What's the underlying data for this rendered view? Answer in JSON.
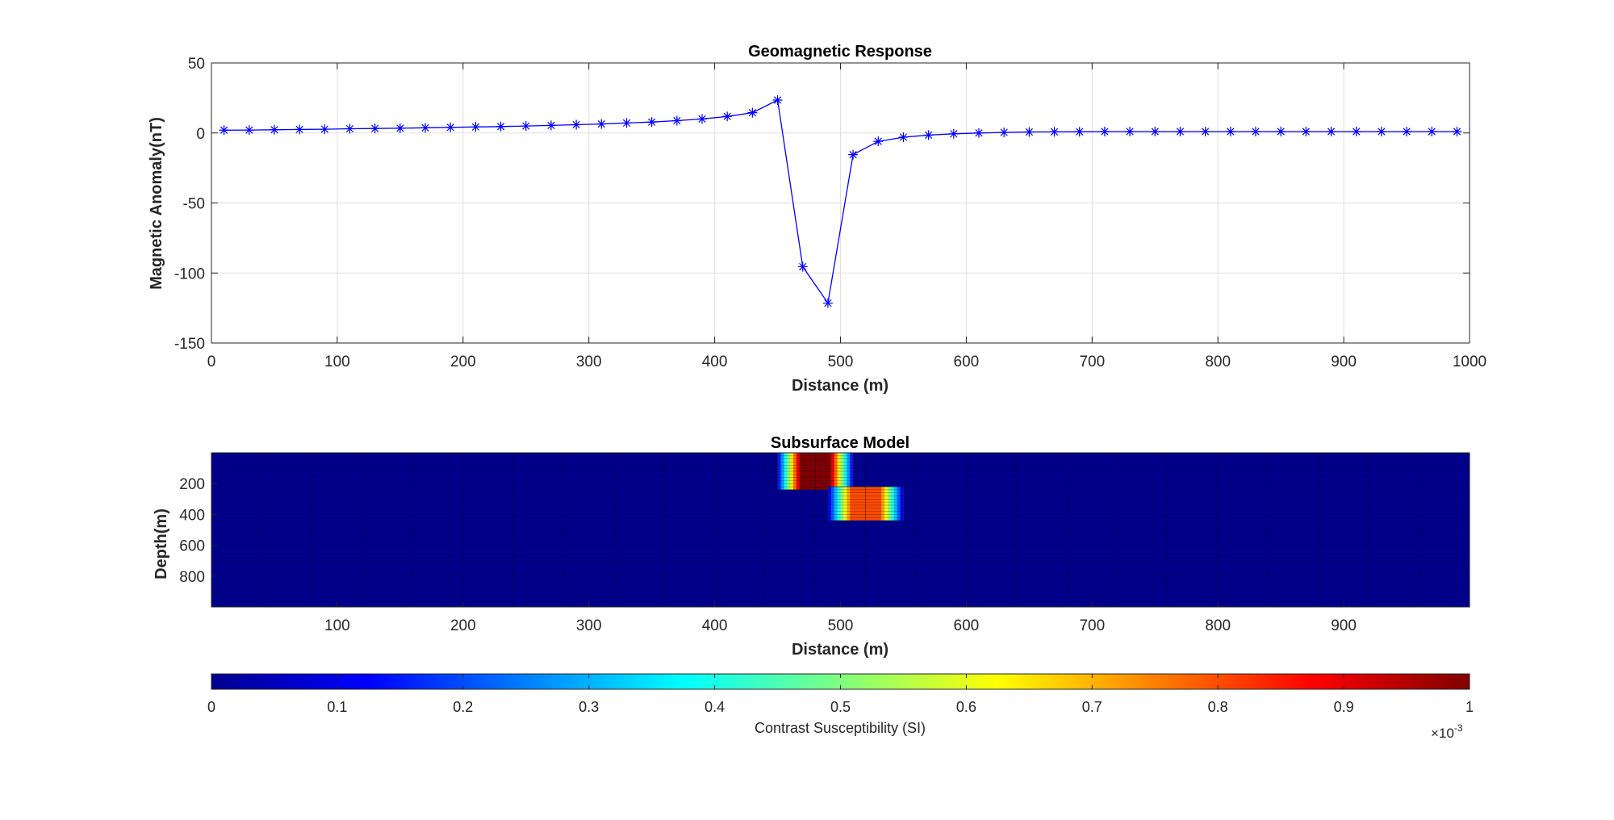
{
  "chart_data": [
    {
      "type": "line",
      "title": "Geomagnetic Response",
      "xlabel": "Distance (m)",
      "ylabel": "Magnetic Anomaly(nT)",
      "xlim": [
        0,
        1000
      ],
      "ylim": [
        -150,
        50
      ],
      "xticks": [
        0,
        100,
        200,
        300,
        400,
        500,
        600,
        700,
        800,
        900,
        1000
      ],
      "yticks": [
        50,
        0,
        -50,
        -100,
        -150
      ],
      "grid": true,
      "marker": "asterisk",
      "color": "#0000ff",
      "x": [
        10,
        30,
        50,
        70,
        90,
        110,
        130,
        150,
        170,
        190,
        210,
        230,
        250,
        270,
        290,
        310,
        330,
        350,
        370,
        390,
        410,
        430,
        450,
        470,
        490,
        510,
        530,
        550,
        570,
        590,
        610,
        630,
        650,
        670,
        690,
        710,
        730,
        750,
        770,
        790,
        810,
        830,
        850,
        870,
        890,
        910,
        930,
        950,
        970,
        990
      ],
      "y": [
        2.0,
        2.1,
        2.3,
        2.5,
        2.7,
        3.0,
        3.2,
        3.4,
        3.7,
        4.0,
        4.3,
        4.6,
        5.0,
        5.4,
        5.9,
        6.4,
        7.1,
        7.8,
        8.8,
        10.0,
        11.8,
        14.5,
        23.5,
        -95.5,
        -121.5,
        -15.5,
        -6.0,
        -3.0,
        -1.5,
        -0.6,
        0.0,
        0.4,
        0.7,
        0.8,
        0.9,
        1.0,
        1.0,
        1.0,
        1.0,
        1.0,
        1.0,
        1.0,
        1.0,
        1.0,
        1.0,
        1.0,
        1.0,
        1.0,
        1.0,
        1.0
      ]
    },
    {
      "type": "heatmap",
      "title": "Subsurface Model",
      "xlabel": "Distance (m)",
      "ylabel": "Depth(m)",
      "xlim": [
        0,
        1000
      ],
      "ylim": [
        0,
        1000
      ],
      "y_reversed": true,
      "xticks": [
        100,
        200,
        300,
        400,
        500,
        600,
        700,
        800,
        900
      ],
      "yticks": [
        200,
        400,
        600,
        800
      ],
      "colormap": "jet",
      "cell_dx": 20,
      "cell_dz": 20,
      "background_value": 0,
      "bodies": [
        {
          "x": [
            450,
            510
          ],
          "depth": [
            0,
            240
          ],
          "susceptibility": 0.001
        },
        {
          "x": [
            490,
            550
          ],
          "depth": [
            220,
            440
          ],
          "susceptibility": 0.0008
        }
      ]
    },
    {
      "type": "colorbar",
      "label": "Contrast Susceptibility (SI)",
      "ticks": [
        "0",
        "0.1",
        "0.2",
        "0.3",
        "0.4",
        "0.5",
        "0.6",
        "0.7",
        "0.8",
        "0.9",
        "1"
      ],
      "range": [
        0,
        1
      ],
      "exponent_base": "×10",
      "exponent_power": "-3"
    }
  ]
}
